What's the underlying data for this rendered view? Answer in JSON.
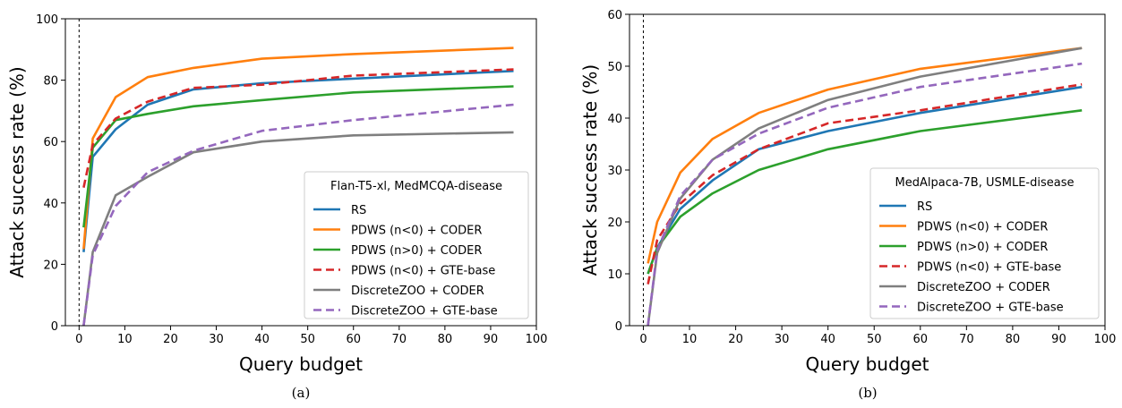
{
  "chart_data": [
    {
      "type": "line",
      "xlabel": "Query budget",
      "ylabel": "Attack success rate (%)",
      "xlim": [
        -3,
        100
      ],
      "ylim": [
        0,
        100
      ],
      "xticks": [
        0,
        10,
        20,
        30,
        40,
        50,
        60,
        70,
        80,
        90,
        100
      ],
      "yticks": [
        0,
        20,
        40,
        60,
        80,
        100
      ],
      "grid": false,
      "reference_vline": 0,
      "legend": {
        "title": "Flan-T5-xl, MedMCQA-disease",
        "placement": "lower-right"
      },
      "caption": "(a)",
      "series": [
        {
          "name": "RS",
          "color": "#1f77b4",
          "dash": "solid",
          "x": [
            1,
            3,
            8,
            15,
            25,
            40,
            60,
            95
          ],
          "y": [
            24,
            55,
            64,
            72,
            77,
            79,
            80.5,
            83
          ]
        },
        {
          "name": "PDWS (n<0) + CODER",
          "color": "#ff7f0e",
          "dash": "solid",
          "x": [
            1,
            3,
            8,
            15,
            25,
            40,
            60,
            95
          ],
          "y": [
            25,
            61,
            74.5,
            81,
            84,
            87,
            88.5,
            90.5
          ]
        },
        {
          "name": "PDWS (n>0) + CODER",
          "color": "#2ca02c",
          "dash": "solid",
          "x": [
            1,
            3,
            8,
            15,
            25,
            40,
            60,
            95
          ],
          "y": [
            32,
            58,
            67,
            69,
            71.5,
            73.5,
            76,
            78
          ]
        },
        {
          "name": "PDWS (n<0) + GTE-base",
          "color": "#d62728",
          "dash": "dashed",
          "x": [
            1,
            3,
            8,
            15,
            25,
            40,
            60,
            95
          ],
          "y": [
            45,
            59,
            67.5,
            73,
            77.5,
            78.5,
            81.5,
            83.5
          ]
        },
        {
          "name": "DiscreteZOO + CODER",
          "color": "#7f7f7f",
          "dash": "solid",
          "x": [
            1,
            3,
            8,
            15,
            25,
            40,
            60,
            95
          ],
          "y": [
            0,
            24,
            42.5,
            48.5,
            56.5,
            60,
            62,
            63
          ]
        },
        {
          "name": "DiscreteZOO + GTE-base",
          "color": "#9467bd",
          "dash": "dashed",
          "x": [
            1,
            3,
            8,
            15,
            25,
            40,
            60,
            95
          ],
          "y": [
            0,
            23,
            39,
            50,
            57,
            63.5,
            67,
            72
          ]
        }
      ]
    },
    {
      "type": "line",
      "xlabel": "Query budget",
      "ylabel": "Attack success rate (%)",
      "xlim": [
        -3,
        100
      ],
      "ylim": [
        0,
        60
      ],
      "xticks": [
        0,
        10,
        20,
        30,
        40,
        50,
        60,
        70,
        80,
        90,
        100
      ],
      "yticks": [
        0,
        10,
        20,
        30,
        40,
        50,
        60
      ],
      "grid": false,
      "reference_vline": 0,
      "legend": {
        "title": "MedAlpaca-7B, USMLE-disease",
        "placement": "lower-right"
      },
      "caption": "(b)",
      "series": [
        {
          "name": "RS",
          "color": "#1f77b4",
          "dash": "solid",
          "x": [
            1,
            3,
            8,
            15,
            25,
            40,
            60,
            95
          ],
          "y": [
            10,
            15,
            22.5,
            28,
            34,
            37.5,
            41,
            46
          ]
        },
        {
          "name": "PDWS (n<0) + CODER",
          "color": "#ff7f0e",
          "dash": "solid",
          "x": [
            1,
            3,
            8,
            15,
            25,
            40,
            60,
            95
          ],
          "y": [
            12,
            20,
            29.5,
            36,
            41,
            45.5,
            49.5,
            53.5
          ]
        },
        {
          "name": "PDWS (n>0) + CODER",
          "color": "#2ca02c",
          "dash": "solid",
          "x": [
            1,
            3,
            8,
            15,
            25,
            40,
            60,
            95
          ],
          "y": [
            10,
            15,
            21,
            25.5,
            30,
            34,
            37.5,
            41.5
          ]
        },
        {
          "name": "PDWS (n<0) + GTE-base",
          "color": "#d62728",
          "dash": "dashed",
          "x": [
            1,
            3,
            8,
            15,
            25,
            40,
            60,
            95
          ],
          "y": [
            8,
            16.5,
            23.5,
            29,
            34,
            39,
            41.5,
            46.5
          ]
        },
        {
          "name": "DiscreteZOO + CODER",
          "color": "#7f7f7f",
          "dash": "solid",
          "x": [
            1,
            3,
            8,
            15,
            25,
            40,
            60,
            95
          ],
          "y": [
            0,
            14,
            24.5,
            32,
            38,
            43.5,
            48,
            53.5
          ]
        },
        {
          "name": "DiscreteZOO + GTE-base",
          "color": "#9467bd",
          "dash": "dashed",
          "x": [
            1,
            3,
            8,
            15,
            25,
            40,
            60,
            95
          ],
          "y": [
            0,
            14.5,
            25,
            32,
            37,
            42,
            46,
            50.5
          ]
        }
      ]
    }
  ]
}
